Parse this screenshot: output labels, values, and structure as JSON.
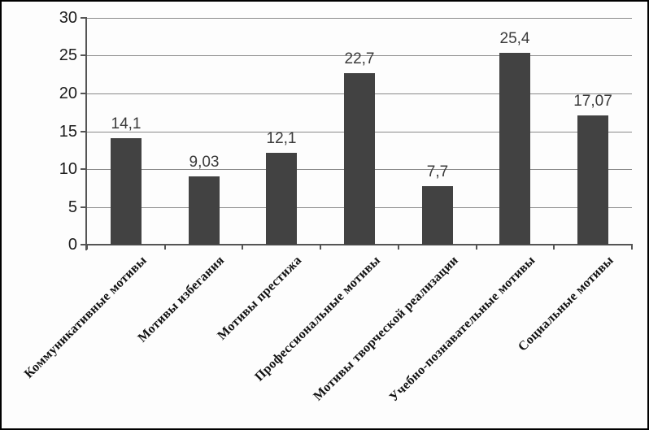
{
  "chart_data": {
    "type": "bar",
    "title": "",
    "categories": [
      "Коммуникативные мотивы",
      "Мотивы избегания",
      "Мотивы престижа",
      "Профессиональные мотивы",
      "Мотивы творческой реализации",
      "Учебно-познавательные мотивы",
      "Социальные мотивы"
    ],
    "values": [
      14.1,
      9.03,
      12.1,
      22.7,
      7.7,
      25.4,
      17.07
    ],
    "value_labels": [
      "14,1",
      "9,03",
      "12,1",
      "22,7",
      "7,7",
      "25,4",
      "17,07"
    ],
    "ylim": [
      0,
      30
    ],
    "yticks": [
      0,
      5,
      10,
      15,
      20,
      25,
      30
    ],
    "ytick_labels": [
      "0",
      "5",
      "10",
      "15",
      "20",
      "25",
      "30"
    ],
    "grid": true,
    "legend": "none",
    "decimal_separator": ",",
    "bar_color": "#424242",
    "grid_color": "#8a8a8a",
    "axis_color": "#555555",
    "value_label_color": "#3a3a3a",
    "tick_label_color": "#1c1c1c",
    "category_label_color": "#121212",
    "frame_color": "#000000",
    "background": "#fdfdfd"
  }
}
